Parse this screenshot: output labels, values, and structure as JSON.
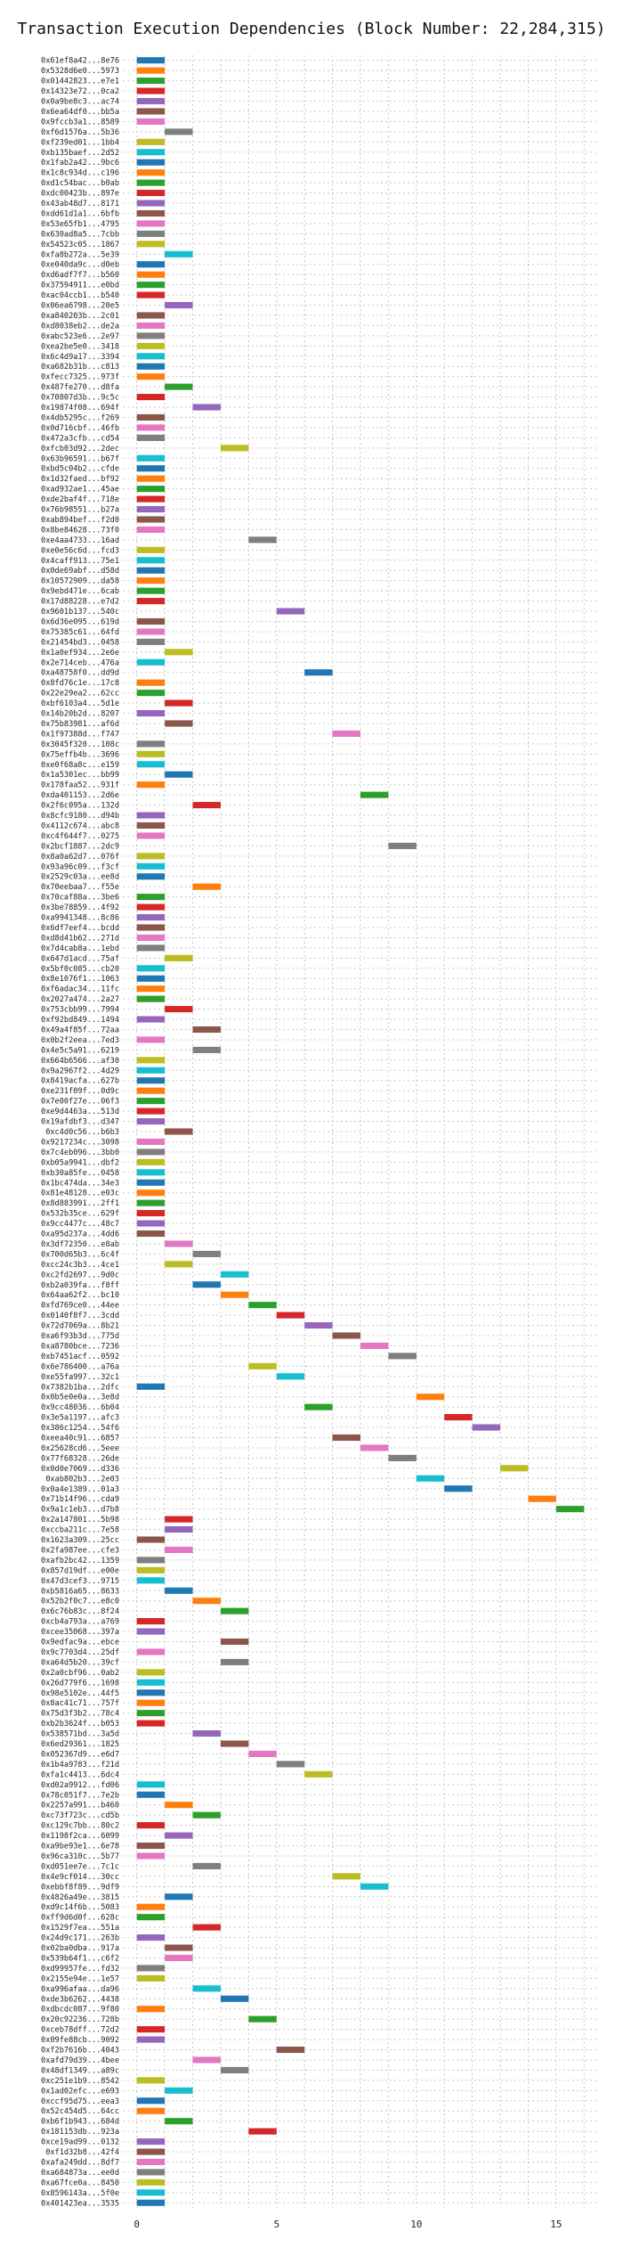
{
  "chart_data": {
    "type": "bar",
    "title": "Transaction Execution Dependencies (Block Number: 22,284,315)",
    "xlabel": "",
    "ylabel": "",
    "xlim": [
      -0.5,
      16.5
    ],
    "xticks": [
      0,
      5,
      10,
      15
    ],
    "grid": true,
    "bar_width": 1,
    "palette": [
      "#1f77b4",
      "#ff7f0e",
      "#2ca02c",
      "#d62728",
      "#9467bd",
      "#8c564b",
      "#e377c2",
      "#7f7f7f",
      "#bcbd22",
      "#17becf"
    ],
    "transactions": [
      {
        "label": "0x61ef8a42...8e76",
        "start": 0
      },
      {
        "label": "0x5328d6e0...5973",
        "start": 0
      },
      {
        "label": "0x01442823...e7e1",
        "start": 0
      },
      {
        "label": "0x14323e72...0ca2",
        "start": 0
      },
      {
        "label": "0x0a9be8c3...ac74",
        "start": 0
      },
      {
        "label": "0x6ea64df0...bb5a",
        "start": 0
      },
      {
        "label": "0x9fccb3a1...8589",
        "start": 0
      },
      {
        "label": "0xf6d1576a...5b36",
        "start": 1
      },
      {
        "label": "0xf239ed01...1bb4",
        "start": 0
      },
      {
        "label": "0xb135baef...2d52",
        "start": 0
      },
      {
        "label": "0x1fab2a42...9bc6",
        "start": 0
      },
      {
        "label": "0x1c8c934d...c196",
        "start": 0
      },
      {
        "label": "0xd1c54bac...b0ab",
        "start": 0
      },
      {
        "label": "0xdc00423b...897e",
        "start": 0
      },
      {
        "label": "0x43ab48d7...8171",
        "start": 0
      },
      {
        "label": "0xdd61d1a1...6bfb",
        "start": 0
      },
      {
        "label": "0x53e65fb1...4795",
        "start": 0
      },
      {
        "label": "0x630ad8a5...7cbb",
        "start": 0
      },
      {
        "label": "0x54523c05...1867",
        "start": 0
      },
      {
        "label": "0xfa8b272a...5e39",
        "start": 1
      },
      {
        "label": "0xe040da9c...d0eb",
        "start": 0
      },
      {
        "label": "0xd6adf7f7...b560",
        "start": 0
      },
      {
        "label": "0x37594911...e0bd",
        "start": 0
      },
      {
        "label": "0xac04ccb1...b540",
        "start": 0
      },
      {
        "label": "0x06ea6798...20e5",
        "start": 1
      },
      {
        "label": "0xa840203b...2c01",
        "start": 0
      },
      {
        "label": "0xd8038eb2...de2a",
        "start": 0
      },
      {
        "label": "0xabc523e6...2e97",
        "start": 0
      },
      {
        "label": "0xea2be5e0...3418",
        "start": 0
      },
      {
        "label": "0x6c4d9a17...3394",
        "start": 0
      },
      {
        "label": "0xa682b31b...c813",
        "start": 0
      },
      {
        "label": "0xfecc7325...973f",
        "start": 0
      },
      {
        "label": "0x487fe270...d8fa",
        "start": 1
      },
      {
        "label": "0x70807d3b...9c5c",
        "start": 0
      },
      {
        "label": "0x19874f08...694f",
        "start": 2
      },
      {
        "label": "0x4db5295c...f269",
        "start": 0
      },
      {
        "label": "0x0d716cbf...46fb",
        "start": 0
      },
      {
        "label": "0x472a3cfb...cd54",
        "start": 0
      },
      {
        "label": "0xfcb03d92...2dec",
        "start": 3
      },
      {
        "label": "0x63b96591...b67f",
        "start": 0
      },
      {
        "label": "0xbd5c04b2...cfde",
        "start": 0
      },
      {
        "label": "0x1d32faed...bf92",
        "start": 0
      },
      {
        "label": "0xad932ae1...45ae",
        "start": 0
      },
      {
        "label": "0xde2baf4f...718e",
        "start": 0
      },
      {
        "label": "0x76b98551...b27a",
        "start": 0
      },
      {
        "label": "0xab894bef...f2d0",
        "start": 0
      },
      {
        "label": "0x8be84628...73f0",
        "start": 0
      },
      {
        "label": "0xe4aa4733...16ad",
        "start": 4
      },
      {
        "label": "0xe0e56c6d...fcd3",
        "start": 0
      },
      {
        "label": "0x4caff913...75e1",
        "start": 0
      },
      {
        "label": "0x0de69abf...d58d",
        "start": 0
      },
      {
        "label": "0x10572909...da58",
        "start": 0
      },
      {
        "label": "0x9ebd471e...6cab",
        "start": 0
      },
      {
        "label": "0x17d88228...e7d2",
        "start": 0
      },
      {
        "label": "0x9601b137...540c",
        "start": 5
      },
      {
        "label": "0x6d36e095...619d",
        "start": 0
      },
      {
        "label": "0x75385c61...64fd",
        "start": 0
      },
      {
        "label": "0x21454bd3...0458",
        "start": 0
      },
      {
        "label": "0x1a0ef934...2e6e",
        "start": 1
      },
      {
        "label": "0x2e714ceb...476a",
        "start": 0
      },
      {
        "label": "0xa48758f0...dd9d",
        "start": 6
      },
      {
        "label": "0x8fd76c1e...17c8",
        "start": 0
      },
      {
        "label": "0x22e29ea2...62cc",
        "start": 0
      },
      {
        "label": "0xbf6103a4...5d1e",
        "start": 1
      },
      {
        "label": "0x14b20b2d...8207",
        "start": 0
      },
      {
        "label": "0x75b83981...af6d",
        "start": 1
      },
      {
        "label": "0x1f97388d...f747",
        "start": 7
      },
      {
        "label": "0x3045f320...108c",
        "start": 0
      },
      {
        "label": "0x75effb4b...3696",
        "start": 0
      },
      {
        "label": "0xe0f68a8c...e159",
        "start": 0
      },
      {
        "label": "0x1a5301ec...bb99",
        "start": 1
      },
      {
        "label": "0x178faa52...931f",
        "start": 0
      },
      {
        "label": "0xda401153...2d6e",
        "start": 8
      },
      {
        "label": "0x2f6c095a...132d",
        "start": 2
      },
      {
        "label": "0x8cfc9180...d94b",
        "start": 0
      },
      {
        "label": "0x4112c674...abc8",
        "start": 0
      },
      {
        "label": "0xc4f644f7...0275",
        "start": 0
      },
      {
        "label": "0x2bcf1887...2dc9",
        "start": 9
      },
      {
        "label": "0x8a0a62d7...076f",
        "start": 0
      },
      {
        "label": "0x93a96c09...f3cf",
        "start": 0
      },
      {
        "label": "0x2529c03a...ee8d",
        "start": 0
      },
      {
        "label": "0x70eebaa7...f55e",
        "start": 2
      },
      {
        "label": "0x70caf88a...3be6",
        "start": 0
      },
      {
        "label": "0x3be78859...4f92",
        "start": 0
      },
      {
        "label": "0xa9941348...8c86",
        "start": 0
      },
      {
        "label": "0x6df7eef4...bcdd",
        "start": 0
      },
      {
        "label": "0xd8d41b62...271d",
        "start": 0
      },
      {
        "label": "0x7d4cab8a...1ebd",
        "start": 0
      },
      {
        "label": "0x647d1acd...75af",
        "start": 1
      },
      {
        "label": "0x5bf0c085...cb20",
        "start": 0
      },
      {
        "label": "0x8e1076f1...1063",
        "start": 0
      },
      {
        "label": "0xf6adac34...11fc",
        "start": 0
      },
      {
        "label": "0x2027a474...2a27",
        "start": 0
      },
      {
        "label": "0x753cbb99...7994",
        "start": 1
      },
      {
        "label": "0xf92bd849...1494",
        "start": 0
      },
      {
        "label": "0x49a4f85f...72aa",
        "start": 2
      },
      {
        "label": "0x0b2f2eea...7ed3",
        "start": 0
      },
      {
        "label": "0x4e5c5a91...6219",
        "start": 2
      },
      {
        "label": "0x664b6566...af30",
        "start": 0
      },
      {
        "label": "0x9a2967f2...4d29",
        "start": 0
      },
      {
        "label": "0x8419acfa...627b",
        "start": 0
      },
      {
        "label": "0xe231f09f...0d9c",
        "start": 0
      },
      {
        "label": "0x7e00f27e...06f3",
        "start": 0
      },
      {
        "label": "0xe9d4463a...513d",
        "start": 0
      },
      {
        "label": "0x19afdbf3...d347",
        "start": 0
      },
      {
        "label": "0xc4d0c56...b6b3",
        "start": 1
      },
      {
        "label": "0x9217234c...3098",
        "start": 0
      },
      {
        "label": "0x7c4eb096...3bb0",
        "start": 0
      },
      {
        "label": "0xb05a9941...dbf2",
        "start": 0
      },
      {
        "label": "0xb30a85fe...0458",
        "start": 0
      },
      {
        "label": "0x1bc474da...34e3",
        "start": 0
      },
      {
        "label": "0x81e48128...e03c",
        "start": 0
      },
      {
        "label": "0x8d883991...2ff1",
        "start": 0
      },
      {
        "label": "0x532b35ce...629f",
        "start": 0
      },
      {
        "label": "0x9cc4477c...48c7",
        "start": 0
      },
      {
        "label": "0xa95d237a...4dd6",
        "start": 0
      },
      {
        "label": "0x3df72350...e8ab",
        "start": 1
      },
      {
        "label": "0x700d65b3...6c4f",
        "start": 2
      },
      {
        "label": "0xcc24c3b3...4ce1",
        "start": 1
      },
      {
        "label": "0xc2fd2697...9d0c",
        "start": 3
      },
      {
        "label": "0xb2a039fa...f8ff",
        "start": 2
      },
      {
        "label": "0x64aa62f2...bc10",
        "start": 3
      },
      {
        "label": "0xfd769ce0...44ee",
        "start": 4
      },
      {
        "label": "0x0140f8f7...3cdd",
        "start": 5
      },
      {
        "label": "0x72d7069a...8b21",
        "start": 6
      },
      {
        "label": "0xa6f93b3d...775d",
        "start": 7
      },
      {
        "label": "0xa8780bce...7236",
        "start": 8
      },
      {
        "label": "0xb7451acf...0592",
        "start": 9
      },
      {
        "label": "0x6e786400...a76a",
        "start": 4
      },
      {
        "label": "0xe55fa997...32c1",
        "start": 5
      },
      {
        "label": "0x7382b1ba...2dfc",
        "start": 0
      },
      {
        "label": "0x0b5e0e0a...3e8d",
        "start": 10
      },
      {
        "label": "0x9cc48036...6b04",
        "start": 6
      },
      {
        "label": "0x3e5a1197...afc3",
        "start": 11
      },
      {
        "label": "0x386c1254...54f6",
        "start": 12
      },
      {
        "label": "0xeea40c91...6857",
        "start": 7
      },
      {
        "label": "0x25628cd6...5eee",
        "start": 8
      },
      {
        "label": "0x77f68328...26de",
        "start": 9
      },
      {
        "label": "0x0d0e7069...d336",
        "start": 13
      },
      {
        "label": "0xab802b3...2e03",
        "start": 10
      },
      {
        "label": "0x0a4e1389...01a3",
        "start": 11
      },
      {
        "label": "0x71b14f96...cda9",
        "start": 14
      },
      {
        "label": "0x9a1c1eb3...d7b8",
        "start": 15
      },
      {
        "label": "0x2a147801...5b98",
        "start": 1
      },
      {
        "label": "0xccba211c...7e58",
        "start": 1
      },
      {
        "label": "0x1623a309...25cc",
        "start": 0
      },
      {
        "label": "0x2fa987ee...cfe3",
        "start": 1
      },
      {
        "label": "0xafb2bc42...1359",
        "start": 0
      },
      {
        "label": "0x857d19df...e00e",
        "start": 0
      },
      {
        "label": "0x47d3cef3...9715",
        "start": 0
      },
      {
        "label": "0xb5816a65...8633",
        "start": 1
      },
      {
        "label": "0x52b2f0c7...e8c0",
        "start": 2
      },
      {
        "label": "0x6c76b83c...8f24",
        "start": 3
      },
      {
        "label": "0xcb4a793a...a769",
        "start": 0
      },
      {
        "label": "0xcee35068...397a",
        "start": 0
      },
      {
        "label": "0x9edfac9a...ebce",
        "start": 3
      },
      {
        "label": "0x9c7703d4...25df",
        "start": 0
      },
      {
        "label": "0xa64d5b20...39cf",
        "start": 3
      },
      {
        "label": "0x2a0cbf96...0ab2",
        "start": 0
      },
      {
        "label": "0x26d779f6...1698",
        "start": 0
      },
      {
        "label": "0x98e5102e...44f5",
        "start": 0
      },
      {
        "label": "0x8ac41c71...757f",
        "start": 0
      },
      {
        "label": "0x75d3f3b2...78c4",
        "start": 0
      },
      {
        "label": "0xb2b3624f...b053",
        "start": 0
      },
      {
        "label": "0x538571bd...3a5d",
        "start": 2
      },
      {
        "label": "0x6ed29361...1825",
        "start": 3
      },
      {
        "label": "0x052367d9...e6d7",
        "start": 4
      },
      {
        "label": "0x1b4a9783...f21d",
        "start": 5
      },
      {
        "label": "0xfa1c4413...6dc4",
        "start": 6
      },
      {
        "label": "0xd02a9912...fd06",
        "start": 0
      },
      {
        "label": "0x78c051f7...7e2b",
        "start": 0
      },
      {
        "label": "0x2257a991...b460",
        "start": 1
      },
      {
        "label": "0xc73f723c...cd5b",
        "start": 2
      },
      {
        "label": "0xc129c7bb...80c2",
        "start": 0
      },
      {
        "label": "0x1198f2ca...6099",
        "start": 1
      },
      {
        "label": "0xa9be93e1...6e78",
        "start": 0
      },
      {
        "label": "0x96ca310c...5b77",
        "start": 0
      },
      {
        "label": "0xd051ee7e...7c1c",
        "start": 2
      },
      {
        "label": "0x4e9cf014...30cc",
        "start": 7
      },
      {
        "label": "0xebbf8f89...9df9",
        "start": 8
      },
      {
        "label": "0x4826a49e...3815",
        "start": 1
      },
      {
        "label": "0xd9c14f6b...5083",
        "start": 0
      },
      {
        "label": "0xff9d6d0f...628c",
        "start": 0
      },
      {
        "label": "0x1529f7ea...551a",
        "start": 2
      },
      {
        "label": "0x24d9c171...263b",
        "start": 0
      },
      {
        "label": "0x02ba0dba...917a",
        "start": 1
      },
      {
        "label": "0x539b64f1...c6f2",
        "start": 1
      },
      {
        "label": "0xd99957fe...fd32",
        "start": 0
      },
      {
        "label": "0x2155e94e...1e57",
        "start": 0
      },
      {
        "label": "0xa996afaa...da96",
        "start": 2
      },
      {
        "label": "0xde3b6262...4438",
        "start": 3
      },
      {
        "label": "0xdbcdc087...9f80",
        "start": 0
      },
      {
        "label": "0x20c92236...728b",
        "start": 4
      },
      {
        "label": "0xceb78dff...72d2",
        "start": 0
      },
      {
        "label": "0x09fe88cb...9092",
        "start": 0
      },
      {
        "label": "0xf2b7616b...4043",
        "start": 5
      },
      {
        "label": "0xafd79d39...4bee",
        "start": 2
      },
      {
        "label": "0x48df1349...a89c",
        "start": 3
      },
      {
        "label": "0xc251e1b9...8542",
        "start": 0
      },
      {
        "label": "0x1ad02efc...e693",
        "start": 1
      },
      {
        "label": "0xccf95d75...eea3",
        "start": 0
      },
      {
        "label": "0x52c454d5...64cc",
        "start": 0
      },
      {
        "label": "0xb6f1b943...684d",
        "start": 1
      },
      {
        "label": "0x181153db...923a",
        "start": 4
      },
      {
        "label": "0xce19ad99...0132",
        "start": 0
      },
      {
        "label": "0xf1d32b8...42f4",
        "start": 0
      },
      {
        "label": "0xafa249dd...8df7",
        "start": 0
      },
      {
        "label": "0xa684873a...ee0d",
        "start": 0
      },
      {
        "label": "0xa67fce0a...8450",
        "start": 0
      },
      {
        "label": "0x8596143a...5f0e",
        "start": 0
      },
      {
        "label": "0x401423ea...3535",
        "start": 0
      }
    ]
  }
}
